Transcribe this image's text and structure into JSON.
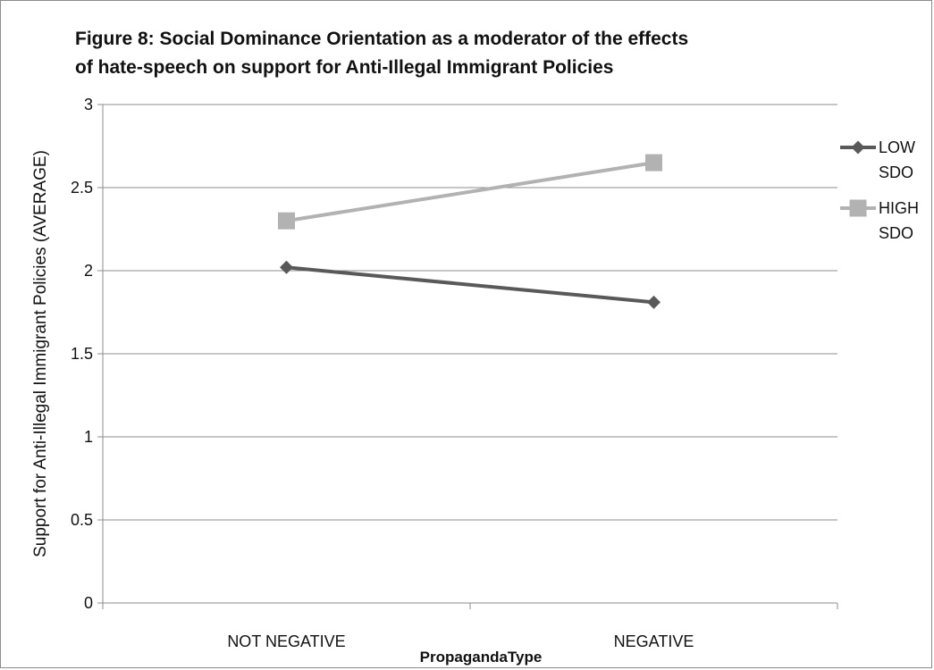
{
  "chart_data": {
    "type": "line",
    "title_lines": [
      "Figure 8: Social Dominance Orientation as a moderator of the effects",
      "of hate-speech on support for Anti-Illegal Immigrant Policies"
    ],
    "categories": [
      "NOT NEGATIVE",
      "NEGATIVE"
    ],
    "xlabel": "PropagandaType",
    "ylabel": "Support for Anti-Illegal Immigrant Policies (AVERAGE)",
    "ylim": [
      0,
      3
    ],
    "yticks": [
      "0",
      "0.5",
      "1",
      "1.5",
      "2",
      "2.5",
      "3"
    ],
    "grid": true,
    "legend_position": "right",
    "series": [
      {
        "name_lines": [
          "LOW",
          "SDO"
        ],
        "values": [
          2.02,
          1.81
        ],
        "color": "#595959",
        "marker": "diamond"
      },
      {
        "name_lines": [
          "HIGH",
          "SDO"
        ],
        "values": [
          2.3,
          2.65
        ],
        "color": "#b2b2b2",
        "marker": "square"
      }
    ]
  }
}
